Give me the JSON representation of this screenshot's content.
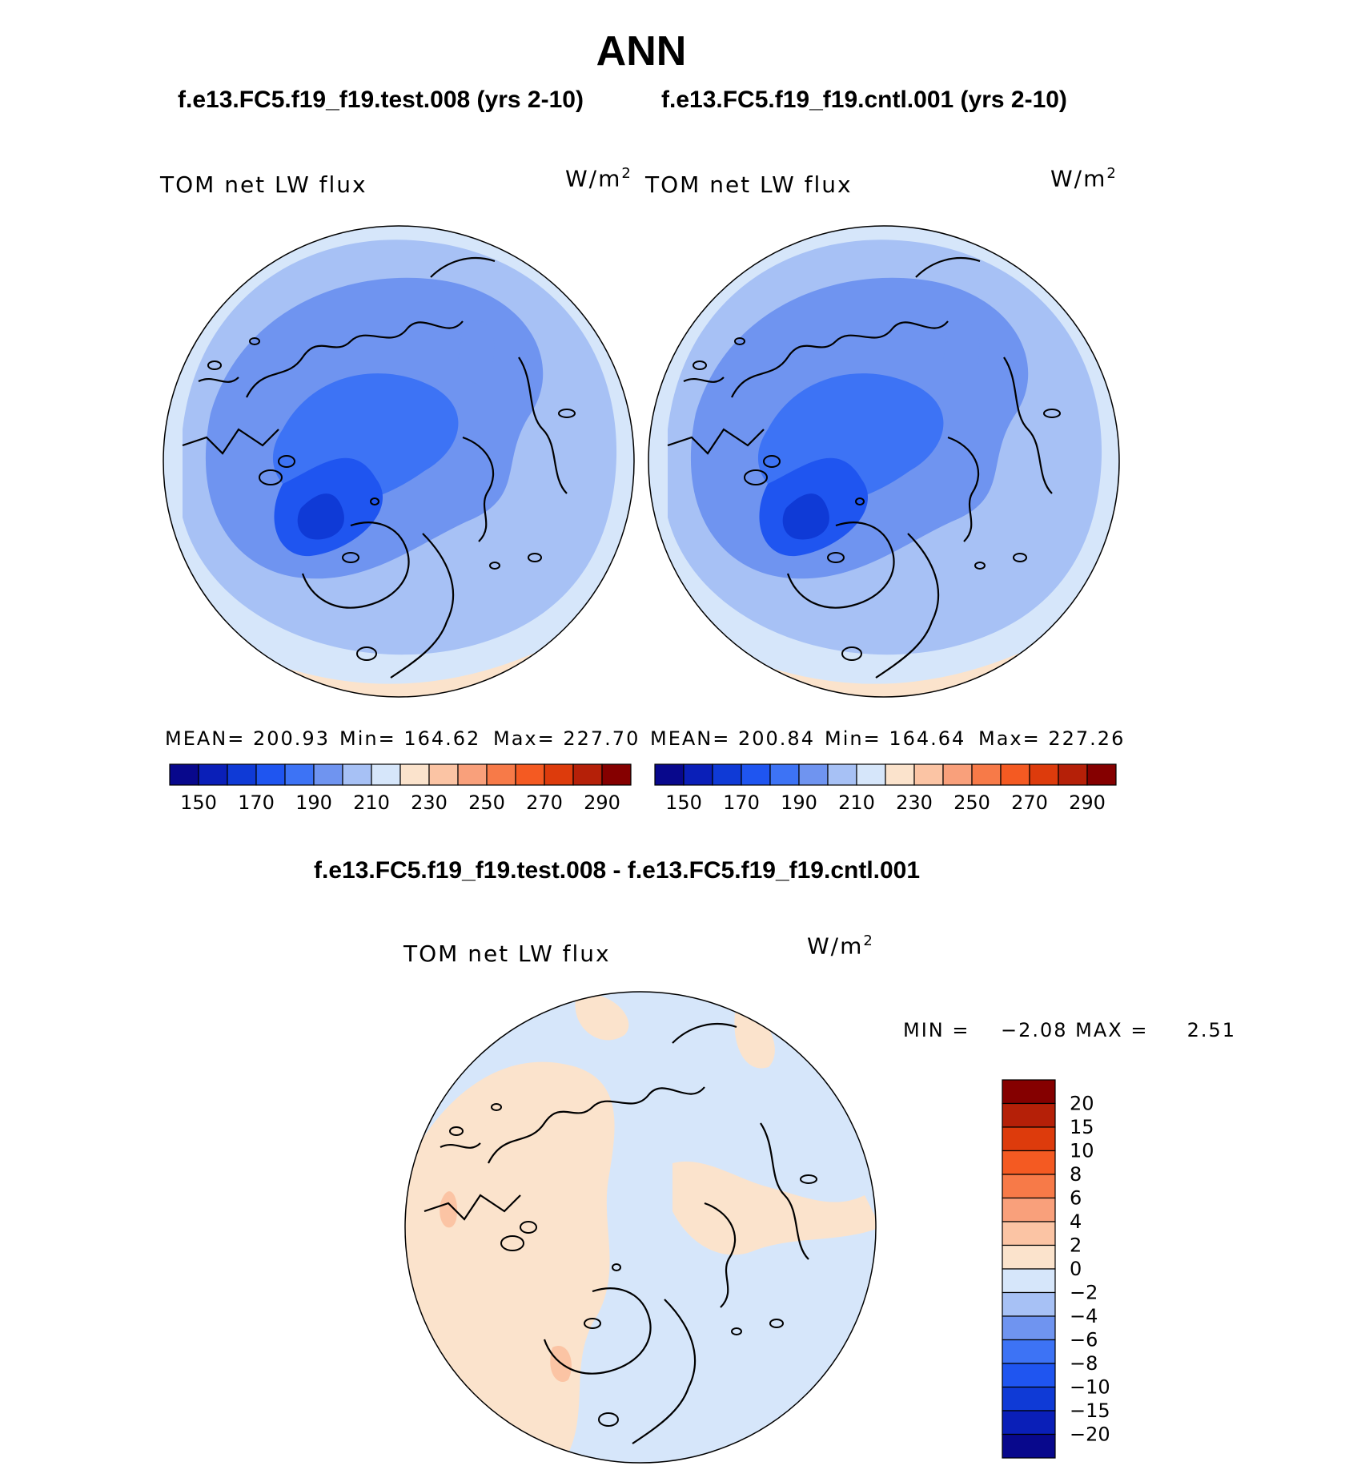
{
  "title": "ANN",
  "panels": [
    {
      "case_title": "f.e13.FC5.f19_f19.test.008 (yrs 2-10)",
      "variable": "TOM net LW flux",
      "units_base": "W/m",
      "units_sup": "2",
      "stats": {
        "mean": "MEAN= 200.93",
        "min": "Min= 164.62",
        "max": "Max= 227.70"
      }
    },
    {
      "case_title": "f.e13.FC5.f19_f19.cntl.001 (yrs 2-10)",
      "variable": "TOM net LW flux",
      "units_base": "W/m",
      "units_sup": "2",
      "stats": {
        "mean": "MEAN= 200.84",
        "min": "Min= 164.64",
        "max": "Max= 227.26"
      }
    }
  ],
  "main_colorbar": {
    "colors": [
      "#08088c",
      "#0a1fb8",
      "#0f3ad6",
      "#1f55f0",
      "#3d73f5",
      "#6f94f0",
      "#a7c1f5",
      "#d6e6fa",
      "#fbe3cc",
      "#fbc4a4",
      "#f9a07b",
      "#f77a48",
      "#f45a22",
      "#dd3b0c",
      "#b52008",
      "#850000"
    ],
    "tick_labels": [
      "150",
      "170",
      "190",
      "210",
      "230",
      "250",
      "270",
      "290"
    ]
  },
  "diff_panel": {
    "title": "f.e13.FC5.f19_f19.test.008 - f.e13.FC5.f19_f19.cntl.001",
    "variable": "TOM net LW flux",
    "units_base": "W/m",
    "units_sup": "2",
    "minmax": "MIN =    −2.08 MAX =     2.51"
  },
  "diff_colorbar": {
    "colors": [
      "#850000",
      "#b52008",
      "#dd3b0c",
      "#f45a22",
      "#f77a48",
      "#f9a07b",
      "#fbc4a4",
      "#fbe3cc",
      "#d6e6fa",
      "#a7c1f5",
      "#6f94f0",
      "#3d73f5",
      "#1f55f0",
      "#0f3ad6",
      "#0a1fb8",
      "#08088c"
    ],
    "tick_labels": [
      "20",
      "15",
      "10",
      "8",
      "6",
      "4",
      "2",
      "0",
      "−2",
      "−4",
      "−6",
      "−8",
      "−10",
      "−15",
      "−20"
    ]
  },
  "map_colors": {
    "ocean_outer": "#d6e6fa",
    "ring": "#a7c1f5",
    "mid": "#6f94f0",
    "inner": "#3d73f5",
    "deep": "#1f55f0",
    "core": "#0f3ad6",
    "warm": "#fbe3cc",
    "diff_warm": "#fbe3cc",
    "diff_cool": "#d6e6fa",
    "diff_spot": "#fbc4a4"
  }
}
